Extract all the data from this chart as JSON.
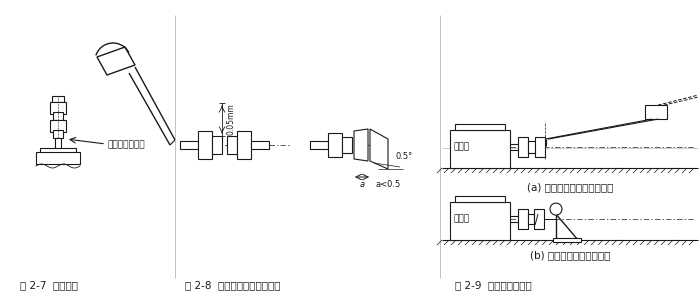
{
  "bg_color": "#ffffff",
  "line_color": "#1a1a1a",
  "fig27_label": "图 2-7  注意事项",
  "fig28_label": "图 2-8  联轴器之间的安装精度",
  "fig29_label": "图 2-9  安装精度的检查",
  "fig27_annotation": "此处应垫一铜棒",
  "fig28_dim1": "0.05mm",
  "fig28_dim2": "0.5°",
  "fig28_dim3": "a<0.5",
  "fig28_dim4": "a",
  "fig29a_label": "原动机",
  "fig29b_label": "原动机",
  "fig29a_caption": "(a) 用百分表检查联轴器端面",
  "fig29b_caption": "(b) 用百分表检查支座端面",
  "font_size_caption": 7.5,
  "font_size_annotation": 6.5,
  "font_size_small": 6.0
}
